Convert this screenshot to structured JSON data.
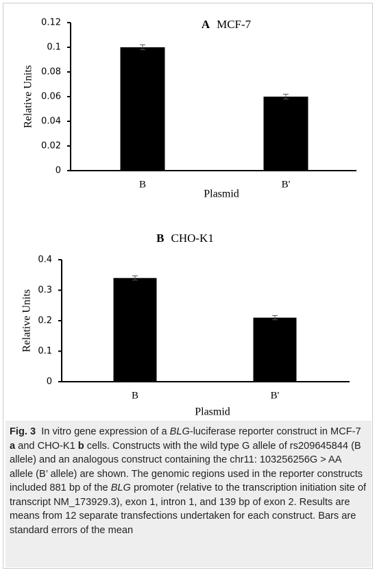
{
  "chart_data": [
    {
      "type": "bar",
      "panel": "A",
      "title": "MCF-7",
      "xlabel": "Plasmid",
      "ylabel": "Relative Units",
      "categories": [
        "B",
        "B'"
      ],
      "values": [
        0.1,
        0.06
      ],
      "errors": [
        0.002,
        0.002
      ],
      "color": "#000000",
      "ylim": [
        0,
        0.12
      ],
      "yticks": [
        0,
        0.02,
        0.04,
        0.06,
        0.08,
        0.1,
        0.12
      ]
    },
    {
      "type": "bar",
      "panel": "B",
      "title": "CHO-K1",
      "xlabel": "Plasmid",
      "ylabel": "Relative Units",
      "categories": [
        "B",
        "B'"
      ],
      "values": [
        0.34,
        0.21
      ],
      "errors": [
        0.007,
        0.007
      ],
      "color": "#000000",
      "ylim": [
        0,
        0.4
      ],
      "yticks": [
        0,
        0.1,
        0.2,
        0.3,
        0.4
      ]
    }
  ],
  "caption": {
    "label": "Fig. 3",
    "parts": [
      "In vitro gene expression of a ",
      "BLG",
      "-luciferase reporter construct in MCF-7 ",
      "a",
      " and CHO-K1 ",
      "b",
      " cells. Constructs with the wild type G allele of rs209645844 (B allele) and an analogous construct containing the chr11: 103256256G > AA allele (B’ allele) are shown. The genomic regions used in the reporter constructs included 881 bp of the ",
      "BLG",
      " promoter (relative to the transcription initiation site of transcript NM_173929.3), exon 1, intron 1, and 139 bp of exon 2. Results are means from 12 separate transfections undertaken for each construct. Bars are standard errors of the mean"
    ]
  }
}
